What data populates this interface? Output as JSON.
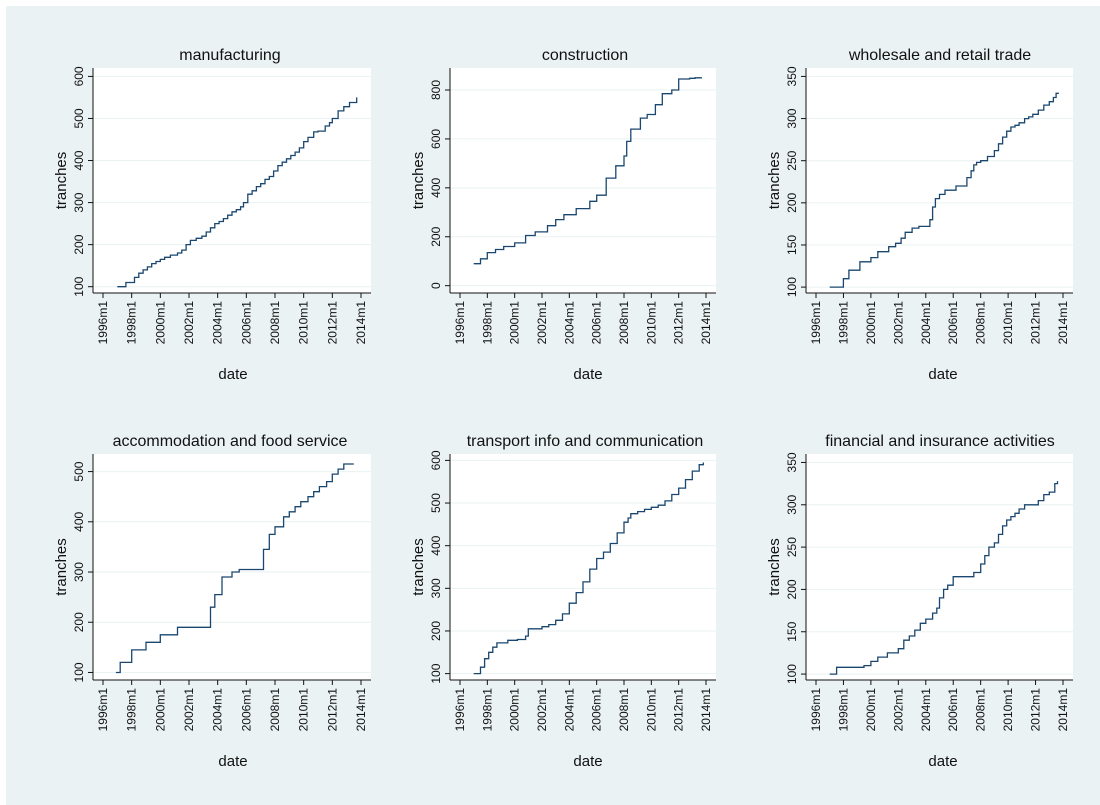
{
  "chart_data": [
    {
      "type": "line",
      "title": "manufacturing",
      "xlabel": "date",
      "ylabel": "tranches",
      "xticks": [
        "1996m1",
        "1998m1",
        "2000m1",
        "2002m1",
        "2004m1",
        "2006m1",
        "2008m1",
        "2010m1",
        "2012m1",
        "2014m1"
      ],
      "yticks": [
        100,
        200,
        300,
        400,
        500,
        600
      ],
      "ylim": [
        85,
        620
      ],
      "series": [
        {
          "x": [
            1997.0,
            1997.5,
            1997.6,
            1998.2,
            1998.5,
            1998.8,
            1999.1,
            1999.4,
            1999.7,
            2000.0,
            2000.3,
            2000.7,
            2001.2,
            2001.5,
            2001.8,
            2002.1,
            2002.5,
            2002.9,
            2003.2,
            2003.5,
            2003.8,
            2004.1,
            2004.4,
            2004.7,
            2005.0,
            2005.3,
            2005.6,
            2005.8,
            2006.1,
            2006.4,
            2006.7,
            2007.0,
            2007.3,
            2007.6,
            2007.9,
            2008.2,
            2008.5,
            2008.8,
            2009.1,
            2009.4,
            2009.7,
            2010.0,
            2010.3,
            2010.7,
            2011.0,
            2011.5,
            2011.8,
            2012.0,
            2012.4,
            2012.8,
            2013.2,
            2013.7
          ],
          "y": [
            100,
            100,
            110,
            122,
            132,
            140,
            147,
            155,
            160,
            165,
            170,
            175,
            180,
            187,
            200,
            210,
            215,
            220,
            230,
            240,
            250,
            255,
            262,
            270,
            278,
            283,
            290,
            300,
            320,
            328,
            338,
            345,
            355,
            362,
            375,
            388,
            396,
            404,
            412,
            420,
            430,
            445,
            455,
            468,
            470,
            482,
            490,
            500,
            518,
            528,
            538,
            550
          ]
        }
      ]
    },
    {
      "type": "line",
      "title": "construction",
      "xlabel": "date",
      "ylabel": "tranches",
      "xticks": [
        "1996m1",
        "1998m1",
        "2000m1",
        "2002m1",
        "2004m1",
        "2006m1",
        "2008m1",
        "2010m1",
        "2012m1",
        "2014m1"
      ],
      "yticks": [
        0,
        200,
        400,
        600,
        800
      ],
      "ylim": [
        -30,
        890
      ],
      "series": [
        {
          "x": [
            1997.0,
            1997.5,
            1998.0,
            1998.6,
            1999.2,
            2000.0,
            2000.8,
            2001.5,
            2002.4,
            2003.0,
            2003.6,
            2004.5,
            2005.5,
            2006.0,
            2006.7,
            2007.4,
            2008.0,
            2008.2,
            2008.5,
            2009.2,
            2009.7,
            2010.3,
            2010.8,
            2011.5,
            2012.0,
            2012.4,
            2012.8,
            2013.2,
            2013.7
          ],
          "y": [
            90,
            110,
            135,
            148,
            160,
            175,
            205,
            220,
            245,
            270,
            290,
            315,
            345,
            370,
            440,
            490,
            530,
            590,
            640,
            685,
            700,
            740,
            785,
            800,
            845,
            845,
            848,
            850,
            850
          ]
        }
      ]
    },
    {
      "type": "line",
      "title": "wholesale and retail trade",
      "xlabel": "date",
      "ylabel": "tranches",
      "xticks": [
        "1996m1",
        "1998m1",
        "2000m1",
        "2002m1",
        "2004m1",
        "2006m1",
        "2008m1",
        "2010m1",
        "2012m1",
        "2014m1"
      ],
      "yticks": [
        100,
        150,
        200,
        250,
        300,
        350
      ],
      "ylim": [
        93,
        360
      ],
      "series": [
        {
          "x": [
            1997.0,
            1997.7,
            1998.0,
            1998.4,
            1999.2,
            2000.0,
            2000.5,
            2001.3,
            2001.8,
            2002.2,
            2002.5,
            2003.0,
            2003.5,
            2003.8,
            2004.3,
            2004.5,
            2004.7,
            2005.0,
            2005.4,
            2006.2,
            2007.0,
            2007.3,
            2007.5,
            2007.7,
            2008.0,
            2008.5,
            2009.0,
            2009.3,
            2009.6,
            2009.9,
            2010.2,
            2010.5,
            2010.8,
            2011.2,
            2011.5,
            2011.8,
            2012.2,
            2012.6,
            2013.0,
            2013.3,
            2013.5,
            2013.7
          ],
          "y": [
            100,
            100,
            110,
            120,
            130,
            135,
            142,
            148,
            152,
            158,
            165,
            170,
            172,
            172,
            180,
            195,
            205,
            210,
            215,
            220,
            230,
            238,
            245,
            248,
            250,
            255,
            262,
            270,
            278,
            285,
            290,
            292,
            295,
            300,
            302,
            305,
            310,
            316,
            320,
            325,
            330,
            330
          ]
        }
      ]
    },
    {
      "type": "line",
      "title": "accommodation and food service",
      "xlabel": "date",
      "ylabel": "tranches",
      "xticks": [
        "1996m1",
        "1998m1",
        "2000m1",
        "2002m1",
        "2004m1",
        "2006m1",
        "2008m1",
        "2010m1",
        "2012m1",
        "2014m1"
      ],
      "yticks": [
        100,
        200,
        300,
        400,
        500
      ],
      "ylim": [
        85,
        535
      ],
      "series": [
        {
          "x": [
            1996.9,
            1997.2,
            1998.0,
            1999.0,
            2000.0,
            2001.2,
            2003.5,
            2003.8,
            2004.3,
            2005.0,
            2005.5,
            2007.2,
            2007.6,
            2008.0,
            2008.6,
            2009.0,
            2009.4,
            2009.8,
            2010.3,
            2010.7,
            2011.1,
            2011.6,
            2012.0,
            2012.4,
            2012.8,
            2013.5
          ],
          "y": [
            100,
            120,
            145,
            160,
            175,
            190,
            230,
            255,
            290,
            300,
            305,
            345,
            375,
            390,
            410,
            420,
            430,
            440,
            450,
            460,
            470,
            480,
            495,
            505,
            515,
            515
          ]
        }
      ]
    },
    {
      "type": "line",
      "title": "transport info and communication",
      "xlabel": "date",
      "ylabel": "tranches",
      "xticks": [
        "1996m1",
        "1998m1",
        "2000m1",
        "2002m1",
        "2004m1",
        "2006m1",
        "2008m1",
        "2010m1",
        "2012m1",
        "2014m1"
      ],
      "yticks": [
        100,
        200,
        300,
        400,
        500,
        600
      ],
      "ylim": [
        85,
        615
      ],
      "series": [
        {
          "x": [
            1997.0,
            1997.5,
            1997.8,
            1998.1,
            1998.4,
            1998.7,
            1999.5,
            2000.2,
            2000.8,
            2001.0,
            2002.0,
            2002.5,
            2003.0,
            2003.5,
            2004.0,
            2004.5,
            2005.0,
            2005.5,
            2006.0,
            2006.5,
            2007.0,
            2007.5,
            2008.0,
            2008.3,
            2008.5,
            2009.0,
            2009.5,
            2010.0,
            2010.5,
            2011.0,
            2011.5,
            2012.0,
            2012.5,
            2013.0,
            2013.5,
            2013.8
          ],
          "y": [
            100,
            115,
            135,
            150,
            162,
            172,
            178,
            180,
            188,
            205,
            210,
            215,
            225,
            240,
            265,
            290,
            315,
            345,
            370,
            385,
            405,
            430,
            455,
            465,
            475,
            480,
            485,
            490,
            495,
            505,
            520,
            535,
            555,
            575,
            590,
            595
          ]
        }
      ]
    },
    {
      "type": "line",
      "title": "financial and insurance activities",
      "xlabel": "date",
      "ylabel": "tranches",
      "xticks": [
        "1996m1",
        "1998m1",
        "2000m1",
        "2002m1",
        "2004m1",
        "2006m1",
        "2008m1",
        "2010m1",
        "2012m1",
        "2014m1"
      ],
      "yticks": [
        100,
        150,
        200,
        250,
        300,
        350
      ],
      "ylim": [
        93,
        360
      ],
      "series": [
        {
          "x": [
            1997.0,
            1997.5,
            1999.5,
            2000.0,
            2000.5,
            2001.2,
            2002.0,
            2002.4,
            2002.8,
            2003.2,
            2003.6,
            2004.0,
            2004.5,
            2004.8,
            2005.0,
            2005.3,
            2005.6,
            2006.0,
            2007.5,
            2008.0,
            2008.3,
            2008.6,
            2009.0,
            2009.3,
            2009.6,
            2009.9,
            2010.2,
            2010.5,
            2010.8,
            2011.2,
            2011.6,
            2012.2,
            2012.6,
            2013.0,
            2013.4,
            2013.6
          ],
          "y": [
            100,
            108,
            110,
            115,
            120,
            125,
            130,
            140,
            145,
            152,
            160,
            165,
            172,
            178,
            190,
            200,
            205,
            215,
            220,
            230,
            240,
            250,
            255,
            265,
            275,
            282,
            286,
            290,
            295,
            300,
            300,
            305,
            312,
            315,
            325,
            328
          ]
        }
      ]
    }
  ]
}
